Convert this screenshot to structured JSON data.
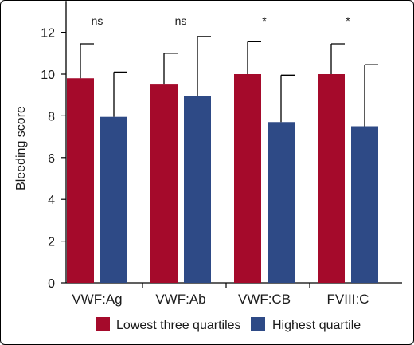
{
  "chart_data": {
    "type": "bar",
    "ylabel": "Bleeding score",
    "xlabel": "",
    "ylim": [
      0,
      13.5
    ],
    "yticks": [
      0,
      2,
      4,
      6,
      8,
      10,
      12
    ],
    "categories": [
      "VWF:Ag",
      "VWF:Ab",
      "VWF:CB",
      "FVIII:C"
    ],
    "significance": [
      "ns",
      "ns",
      "*",
      "*"
    ],
    "series": [
      {
        "name": "Lowest three quartiles",
        "color": "#a50a2b",
        "values": [
          9.8,
          9.5,
          10.0,
          10.0
        ],
        "error": [
          1.65,
          1.5,
          1.55,
          1.45
        ]
      },
      {
        "name": "Highest quartile",
        "color": "#2e4a86",
        "values": [
          7.95,
          8.95,
          7.7,
          7.5
        ],
        "error": [
          2.15,
          2.85,
          2.25,
          2.95
        ]
      }
    ],
    "legend": "bottom",
    "grid": false
  }
}
